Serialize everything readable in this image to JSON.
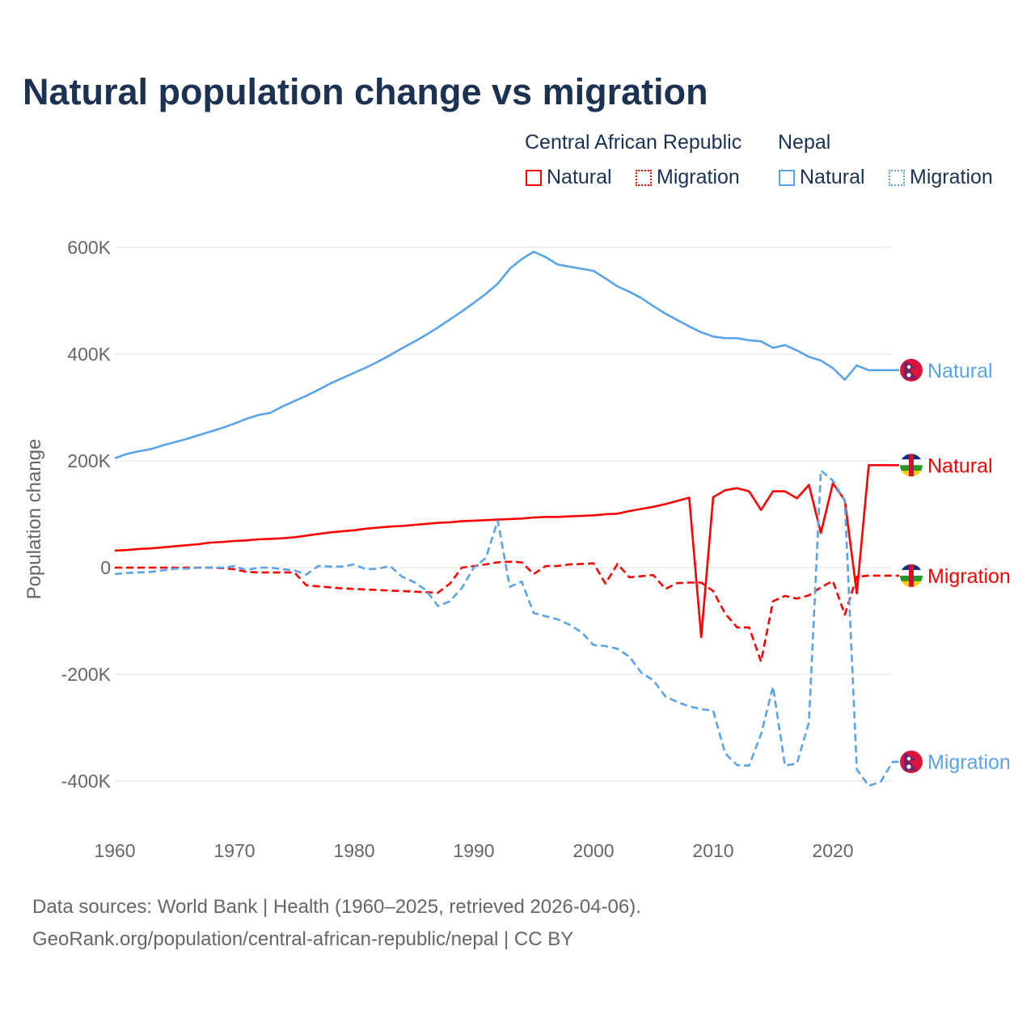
{
  "chart_data": {
    "type": "line",
    "title": "Natural population change vs migration",
    "ylabel": "Population change",
    "xlabel": "",
    "xlim": [
      1960,
      2025
    ],
    "ylim": [
      -500,
      650
    ],
    "y_unit": "thousands",
    "grid": true,
    "legend_placement": "top-right",
    "x_ticks": [
      "1960",
      "1970",
      "1980",
      "1990",
      "2000",
      "2010",
      "2020"
    ],
    "y_ticks": [
      {
        "value": 600,
        "label": "600K"
      },
      {
        "value": 400,
        "label": "400K"
      },
      {
        "value": 200,
        "label": "200K"
      },
      {
        "value": 0,
        "label": "0"
      },
      {
        "value": -200,
        "label": "-200K"
      },
      {
        "value": -400,
        "label": "-400K"
      }
    ],
    "x": [
      1960,
      1961,
      1962,
      1963,
      1964,
      1965,
      1966,
      1967,
      1968,
      1969,
      1970,
      1971,
      1972,
      1973,
      1974,
      1975,
      1976,
      1977,
      1978,
      1979,
      1980,
      1981,
      1982,
      1983,
      1984,
      1985,
      1986,
      1987,
      1988,
      1989,
      1990,
      1991,
      1992,
      1993,
      1994,
      1995,
      1996,
      1997,
      1998,
      1999,
      2000,
      2001,
      2002,
      2003,
      2004,
      2005,
      2006,
      2007,
      2008,
      2009,
      2010,
      2011,
      2012,
      2013,
      2014,
      2015,
      2016,
      2017,
      2018,
      2019,
      2020,
      2021,
      2022,
      2023,
      2024,
      2025
    ],
    "series": [
      {
        "name": "Natural",
        "group": "Nepal",
        "color": "#5ba3e8",
        "dash": "solid",
        "end_label": "Natural",
        "values": [
          205,
          213,
          218,
          222,
          229,
          235,
          241,
          248,
          255,
          262,
          270,
          279,
          286,
          290,
          302,
          312,
          322,
          333,
          345,
          355,
          365,
          375,
          386,
          398,
          411,
          423,
          436,
          450,
          465,
          480,
          496,
          513,
          532,
          560,
          578,
          592,
          582,
          568,
          564,
          560,
          556,
          542,
          527,
          517,
          505,
          490,
          476,
          464,
          452,
          441,
          433,
          430,
          430,
          426,
          424,
          412,
          417,
          407,
          395,
          388,
          374,
          352,
          379,
          370,
          370,
          370
        ]
      },
      {
        "name": "Natural",
        "group": "Central African Republic",
        "color": "#ff0000",
        "dash": "solid",
        "end_label": "Natural",
        "values": [
          32,
          33,
          35,
          36,
          38,
          40,
          42,
          44,
          47,
          48,
          50,
          51,
          53,
          54,
          55,
          57,
          60,
          63,
          66,
          68,
          70,
          73,
          75,
          77,
          78,
          80,
          82,
          84,
          85,
          87,
          88,
          89,
          90,
          91,
          92,
          94,
          95,
          95,
          96,
          97,
          98,
          100,
          101,
          106,
          110,
          114,
          119,
          125,
          131,
          -130,
          132,
          145,
          149,
          143,
          108,
          143,
          143,
          130,
          155,
          65,
          158,
          126,
          -48,
          192,
          192,
          192
        ]
      },
      {
        "name": "Migration",
        "group": "Central African Republic",
        "color": "#ff0000",
        "dash": "dashed",
        "end_label": "Migration",
        "values": [
          0,
          0,
          0,
          0,
          0,
          0,
          0,
          0,
          0,
          -1,
          -3,
          -8,
          -9,
          -9,
          -9,
          -9,
          -33,
          -35,
          -37,
          -39,
          -40,
          -41,
          -42,
          -43,
          -44,
          -45,
          -46,
          -47,
          -30,
          0,
          3,
          6,
          10,
          11,
          10,
          -12,
          3,
          3,
          6,
          7,
          8,
          -30,
          7,
          -18,
          -16,
          -14,
          -40,
          -29,
          -28,
          -28,
          -44,
          -86,
          -112,
          -112,
          -176,
          -63,
          -53,
          -58,
          -52,
          -37,
          -25,
          -88,
          -17,
          -15,
          -15,
          -15
        ]
      },
      {
        "name": "Migration",
        "group": "Nepal",
        "color": "#5ba3e8",
        "dash": "dashed",
        "end_label": "Migration",
        "values": [
          -12,
          -10,
          -9,
          -8,
          -5,
          -2,
          -2,
          0,
          0,
          0,
          3,
          -5,
          0,
          0,
          -3,
          -5,
          -13,
          3,
          2,
          2,
          6,
          -3,
          -2,
          3,
          -17,
          -27,
          -42,
          -72,
          -63,
          -38,
          0,
          18,
          88,
          -36,
          -26,
          -85,
          -91,
          -97,
          -107,
          -121,
          -145,
          -147,
          -152,
          -167,
          -197,
          -211,
          -241,
          -252,
          -260,
          -265,
          -268,
          -348,
          -370,
          -371,
          -312,
          -223,
          -371,
          -367,
          -290,
          182,
          163,
          125,
          -378,
          -409,
          -401,
          -364
        ]
      }
    ],
    "legend": {
      "groups": [
        {
          "label": "Central African Republic",
          "items": [
            {
              "label": "Natural",
              "style": "solid",
              "color": "#ff0000"
            },
            {
              "label": "Migration",
              "style": "dotted",
              "color": "#ff0000"
            }
          ]
        },
        {
          "label": "Nepal",
          "items": [
            {
              "label": "Natural",
              "style": "solid",
              "color": "#5ba3e8"
            },
            {
              "label": "Migration",
              "style": "dotted",
              "color": "#5ba3e8"
            }
          ]
        }
      ]
    }
  },
  "footer": {
    "line1": "Data sources: World Bank | Health (1960–2025, retrieved 2026-04-06).",
    "line2": "GeoRank.org/population/central-african-republic/nepal | CC BY"
  }
}
